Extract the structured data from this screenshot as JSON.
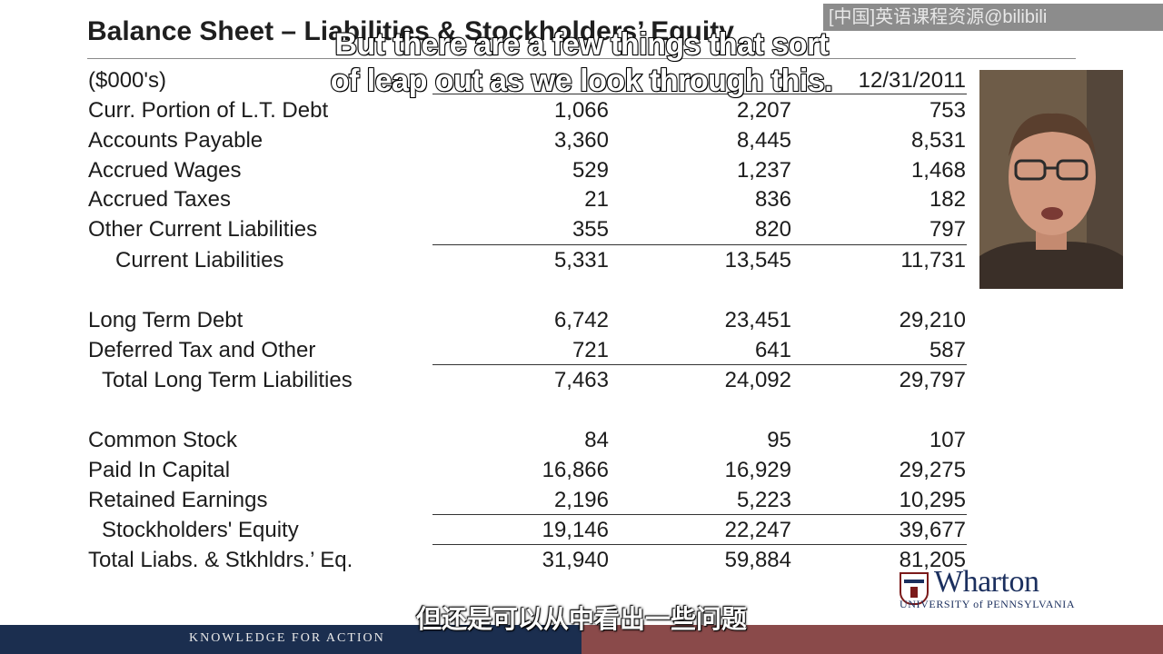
{
  "slide": {
    "title": "Balance Sheet – Liabilities & Stockholders’ Equity",
    "units": "($000's)",
    "column_headers": [
      "",
      "",
      "12/31/2011"
    ]
  },
  "rows": [
    {
      "label": "Curr. Portion of  L.T. Debt",
      "values": [
        "1,066",
        "2,207",
        "753"
      ]
    },
    {
      "label": "Accounts Payable",
      "values": [
        "3,360",
        "8,445",
        "8,531"
      ]
    },
    {
      "label": "Accrued Wages",
      "values": [
        "529",
        "1,237",
        "1,468"
      ]
    },
    {
      "label": "Accrued Taxes",
      "values": [
        "21",
        "836",
        "182"
      ]
    },
    {
      "label": "Other Current Liabilities",
      "values": [
        "355",
        "820",
        "797"
      ]
    },
    {
      "label": "Current Liabilities",
      "values": [
        "5,331",
        "13,545",
        "11,731"
      ]
    },
    {
      "label": "Long Term Debt",
      "values": [
        "6,742",
        "23,451",
        "29,210"
      ]
    },
    {
      "label": "Deferred Tax and Other",
      "values": [
        "721",
        "641",
        "587"
      ]
    },
    {
      "label": "Total Long Term Liabilities",
      "values": [
        "7,463",
        "24,092",
        "29,797"
      ]
    },
    {
      "label": "Common Stock",
      "values": [
        "84",
        "95",
        "107"
      ]
    },
    {
      "label": "Paid In Capital",
      "values": [
        "16,866",
        "16,929",
        "29,275"
      ]
    },
    {
      "label": "Retained Earnings",
      "values": [
        "2,196",
        "5,223",
        "10,295"
      ]
    },
    {
      "label": "Stockholders' Equity",
      "values": [
        "19,146",
        "22,247",
        "39,677"
      ]
    },
    {
      "label": "Total Liabs. & Stkhldrs.’ Eq.",
      "values": [
        "31,940",
        "59,884",
        "81,205"
      ]
    }
  ],
  "captions": {
    "english_line1": "But there are a few things that sort",
    "english_line2": "of leap out as we look through this.",
    "chinese": "但还是可以从中看出一些问题"
  },
  "watermark": "[中国]英语课程资源@bilibili",
  "logo": {
    "name": "Wharton",
    "university": "UNIVERSITY of PENNSYLVANIA"
  },
  "footer": {
    "tagline": "KNOWLEDGE FOR ACTION"
  },
  "colors": {
    "footer_navy": "#1b2e4f",
    "footer_red": "#8a4a4a",
    "wharton_blue": "#1b2f5e",
    "penn_red": "#7b1a1a"
  }
}
